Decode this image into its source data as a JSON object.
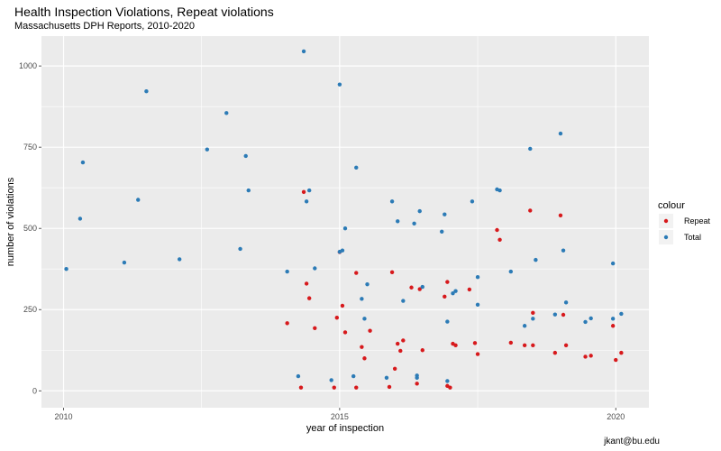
{
  "chart_data": {
    "type": "scatter",
    "title": "Health Inspection Violations, Repeat violations",
    "subtitle": "Massachusetts DPH Reports, 2010-2020",
    "xlabel": "year of inspection",
    "ylabel": "number of violations",
    "caption": "jkant@bu.edu",
    "xlim": [
      2009.6,
      2020.6
    ],
    "ylim": [
      -52,
      1092
    ],
    "xticks": [
      2010,
      2015,
      2020
    ],
    "yticks": [
      0,
      250,
      500,
      750,
      1000
    ],
    "grid": true,
    "legend": {
      "title": "colour",
      "position": "right"
    },
    "series": [
      {
        "name": "Repeat",
        "color": "#d7191c",
        "points": [
          [
            2014.05,
            208
          ],
          [
            2014.3,
            10
          ],
          [
            2014.35,
            612
          ],
          [
            2014.4,
            330
          ],
          [
            2014.45,
            285
          ],
          [
            2014.55,
            193
          ],
          [
            2014.9,
            10
          ],
          [
            2014.95,
            225
          ],
          [
            2015.0,
            427
          ],
          [
            2015.05,
            262
          ],
          [
            2015.1,
            180
          ],
          [
            2015.3,
            10
          ],
          [
            2015.3,
            363
          ],
          [
            2015.4,
            135
          ],
          [
            2015.45,
            100
          ],
          [
            2015.55,
            185
          ],
          [
            2015.9,
            12
          ],
          [
            2015.95,
            365
          ],
          [
            2016.0,
            68
          ],
          [
            2016.05,
            145
          ],
          [
            2016.1,
            123
          ],
          [
            2016.15,
            155
          ],
          [
            2016.3,
            318
          ],
          [
            2016.4,
            22
          ],
          [
            2016.45,
            313
          ],
          [
            2016.5,
            125
          ],
          [
            2016.9,
            290
          ],
          [
            2016.95,
            335
          ],
          [
            2016.95,
            15
          ],
          [
            2017.0,
            10
          ],
          [
            2017.05,
            145
          ],
          [
            2017.1,
            140
          ],
          [
            2017.35,
            312
          ],
          [
            2017.45,
            147
          ],
          [
            2017.5,
            113
          ],
          [
            2017.85,
            495
          ],
          [
            2017.9,
            465
          ],
          [
            2018.1,
            148
          ],
          [
            2018.35,
            140
          ],
          [
            2018.45,
            555
          ],
          [
            2018.5,
            240
          ],
          [
            2018.5,
            140
          ],
          [
            2018.9,
            117
          ],
          [
            2019.0,
            540
          ],
          [
            2019.05,
            234
          ],
          [
            2019.1,
            140
          ],
          [
            2019.45,
            105
          ],
          [
            2019.55,
            108
          ],
          [
            2019.95,
            200
          ],
          [
            2020.0,
            95
          ],
          [
            2020.1,
            117
          ]
        ]
      },
      {
        "name": "Total",
        "color": "#2c7bb6",
        "points": [
          [
            2010.05,
            375
          ],
          [
            2010.3,
            530
          ],
          [
            2010.35,
            703
          ],
          [
            2011.1,
            395
          ],
          [
            2011.35,
            588
          ],
          [
            2011.5,
            922
          ],
          [
            2012.1,
            405
          ],
          [
            2012.6,
            743
          ],
          [
            2012.95,
            855
          ],
          [
            2013.2,
            437
          ],
          [
            2013.3,
            723
          ],
          [
            2013.35,
            617
          ],
          [
            2014.05,
            367
          ],
          [
            2014.25,
            45
          ],
          [
            2014.35,
            1045
          ],
          [
            2014.4,
            583
          ],
          [
            2014.45,
            617
          ],
          [
            2014.55,
            377
          ],
          [
            2014.85,
            33
          ],
          [
            2015.0,
            943
          ],
          [
            2015.0,
            428
          ],
          [
            2015.05,
            432
          ],
          [
            2015.1,
            500
          ],
          [
            2015.25,
            45
          ],
          [
            2015.3,
            687
          ],
          [
            2015.4,
            283
          ],
          [
            2015.45,
            222
          ],
          [
            2015.5,
            328
          ],
          [
            2015.85,
            40
          ],
          [
            2015.95,
            583
          ],
          [
            2016.05,
            522
          ],
          [
            2016.15,
            277
          ],
          [
            2016.35,
            515
          ],
          [
            2016.4,
            47
          ],
          [
            2016.45,
            553
          ],
          [
            2016.5,
            320
          ],
          [
            2016.4,
            40
          ],
          [
            2016.85,
            490
          ],
          [
            2016.9,
            543
          ],
          [
            2016.95,
            30
          ],
          [
            2016.95,
            213
          ],
          [
            2017.05,
            300
          ],
          [
            2017.1,
            307
          ],
          [
            2017.4,
            583
          ],
          [
            2017.5,
            265
          ],
          [
            2017.5,
            350
          ],
          [
            2017.85,
            620
          ],
          [
            2017.9,
            617
          ],
          [
            2018.1,
            367
          ],
          [
            2018.35,
            200
          ],
          [
            2018.45,
            745
          ],
          [
            2018.5,
            222
          ],
          [
            2018.55,
            403
          ],
          [
            2018.9,
            235
          ],
          [
            2019.0,
            792
          ],
          [
            2019.05,
            432
          ],
          [
            2019.1,
            272
          ],
          [
            2019.45,
            212
          ],
          [
            2019.55,
            223
          ],
          [
            2019.95,
            392
          ],
          [
            2019.95,
            222
          ],
          [
            2020.1,
            237
          ]
        ]
      }
    ]
  }
}
